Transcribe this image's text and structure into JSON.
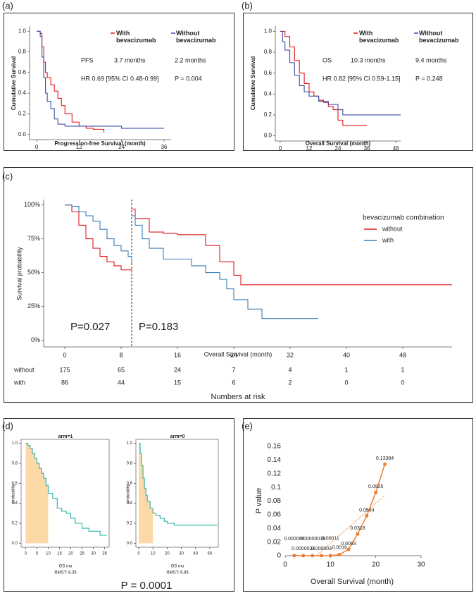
{
  "chart_data": [
    {
      "label": "(a)",
      "type": "step",
      "x_label": "Progression-free Survival (month)",
      "y_label": "Cumulative Survival",
      "xlim": [
        -2,
        38
      ],
      "xticks": [
        0,
        12,
        24,
        36
      ],
      "ylim": [
        -0.05,
        1.05
      ],
      "yticks": [
        {
          "value": 0,
          "label": "0.0"
        },
        0.2,
        0.4,
        0.6,
        0.8,
        {
          "value": 1,
          "label": "1.0"
        }
      ],
      "series": [
        {
          "name": "With bevacizumab",
          "color": "#e8141b",
          "x": [
            0,
            1,
            1.5,
            2,
            2.5,
            3,
            4,
            5,
            6,
            7,
            8,
            10,
            12,
            14,
            16,
            19
          ],
          "values": [
            1,
            0.98,
            0.85,
            0.7,
            0.6,
            0.55,
            0.48,
            0.42,
            0.35,
            0.28,
            0.2,
            0.12,
            0.08,
            0.06,
            0.05,
            0.02
          ]
        },
        {
          "name": "Without bevacizumab",
          "color": "#3a4ca8",
          "x": [
            0,
            1,
            1.5,
            2,
            2.5,
            3,
            4,
            5,
            6,
            8,
            24,
            36
          ],
          "values": [
            1,
            0.95,
            0.75,
            0.55,
            0.4,
            0.32,
            0.25,
            0.15,
            0.1,
            0.08,
            0.06,
            0.06
          ]
        }
      ],
      "annotations": [
        "PFS",
        "3.7 months",
        "2.2 months",
        "HR 0.69 [95% CI 0.48-0.99]",
        "P = 0.004"
      ]
    },
    {
      "label": "(b)",
      "type": "step",
      "x_label": "Overall Survival (month)",
      "y_label": "Cumulative Survival",
      "xlim": [
        -2,
        50
      ],
      "xticks": [
        0,
        12,
        24,
        36,
        48
      ],
      "ylim": [
        -0.05,
        1.05
      ],
      "yticks": [
        {
          "value": 0,
          "label": "0.0"
        },
        0.2,
        0.4,
        0.6,
        0.8,
        {
          "value": 1,
          "label": "1.0"
        }
      ],
      "series": [
        {
          "name": "With bevacizumab",
          "color": "#e8141b",
          "x": [
            0,
            2,
            4,
            6,
            8,
            10,
            12,
            14,
            16,
            18,
            20,
            22,
            24,
            26,
            36
          ],
          "values": [
            1,
            0.95,
            0.85,
            0.72,
            0.6,
            0.5,
            0.42,
            0.38,
            0.34,
            0.32,
            0.28,
            0.25,
            0.15,
            0.1,
            0.1
          ]
        },
        {
          "name": "Without bevacizumab",
          "color": "#3a4ca8",
          "x": [
            0,
            1,
            2,
            4,
            6,
            8,
            10,
            12,
            16,
            20,
            24,
            26,
            50
          ],
          "values": [
            1,
            0.9,
            0.82,
            0.7,
            0.58,
            0.48,
            0.42,
            0.38,
            0.33,
            0.3,
            0.25,
            0.2,
            0.2
          ]
        }
      ],
      "annotations": [
        "OS",
        "10.3 months",
        "9.4 months",
        "HR 0.82 [95% CI 0.59-1.15]",
        "P = 0.248"
      ]
    },
    {
      "label": "(c)",
      "type": "step",
      "x_label": "Overall Survival (month)",
      "y_label": "Survival probability",
      "xlim": [
        -3,
        55
      ],
      "xticks": [
        0,
        8,
        16,
        24,
        32,
        40,
        48
      ],
      "ylim": [
        -5,
        104
      ],
      "yticks": [
        {
          "value": 0,
          "label": "0%"
        },
        {
          "value": 25,
          "label": "25%"
        },
        {
          "value": 50,
          "label": "50%"
        },
        {
          "value": 75,
          "label": "75%"
        },
        {
          "value": 100,
          "label": "100%"
        }
      ],
      "legend_title": "bevacizumab combination",
      "landmark": 9.5,
      "series": [
        {
          "name": "without",
          "color": "#e41a1c",
          "x": [
            0,
            1,
            2,
            3,
            4,
            5,
            6,
            7,
            8,
            9.5,
            null,
            9.5,
            10,
            12,
            14,
            16,
            20,
            22,
            24,
            25,
            55
          ],
          "values": [
            100,
            95,
            85,
            75,
            68,
            62,
            58,
            55,
            52,
            50,
            null,
            97,
            90,
            80,
            79,
            78,
            70,
            58,
            48,
            41,
            41
          ]
        },
        {
          "name": "with",
          "color": "#377eb8",
          "x": [
            0,
            1,
            2,
            3,
            4,
            5,
            6,
            7,
            8,
            9,
            9.5,
            null,
            9.5,
            10,
            11,
            12,
            14,
            16,
            18,
            20,
            22,
            23,
            24,
            26,
            28,
            36
          ],
          "values": [
            100,
            99,
            95,
            92,
            88,
            82,
            75,
            70,
            66,
            62,
            57,
            null,
            92,
            85,
            75,
            68,
            60,
            60,
            55,
            50,
            45,
            38,
            30,
            23,
            16,
            16
          ]
        }
      ],
      "annotations": [
        "P=0.027",
        "P=0.183"
      ],
      "risk_table": {
        "title": "Numbers at risk",
        "rows": [
          {
            "name": "without",
            "values": [
              175,
              65,
              24,
              7,
              4,
              1,
              1
            ]
          },
          {
            "name": "with",
            "values": [
              86,
              44,
              15,
              6,
              2,
              0,
              0
            ]
          }
        ]
      }
    },
    {
      "label": "(d)",
      "type": "step",
      "title": "arm=1",
      "y_label": "probability",
      "xlim": [
        -2,
        37
      ],
      "xticks": [
        0,
        5,
        10,
        15,
        20,
        25,
        30,
        35
      ],
      "ylim": [
        -0.04,
        1.04
      ],
      "yticks": [
        {
          "value": 0,
          "label": "0.0"
        },
        0.2,
        0.4,
        0.6,
        0.8,
        {
          "value": 1,
          "label": "1.0"
        }
      ],
      "shade_until": 10,
      "shade_color": "#fcd9a6",
      "series": [
        {
          "color": "#2ab0a6",
          "x": [
            0,
            1,
            2,
            3,
            4,
            5,
            6,
            7,
            8,
            9,
            10,
            12,
            14,
            16,
            18,
            20,
            22,
            25,
            28,
            30,
            33,
            36
          ],
          "values": [
            1,
            0.98,
            0.95,
            0.9,
            0.85,
            0.8,
            0.75,
            0.7,
            0.65,
            0.58,
            0.5,
            0.45,
            0.35,
            0.32,
            0.3,
            0.25,
            0.2,
            0.15,
            0.12,
            0.12,
            0.08,
            0.08
          ]
        }
      ],
      "annotations": [
        "OS mo",
        "RMST: 8.35",
        "P = 0.0001"
      ]
    },
    {
      "type": "step",
      "title": "arm=0",
      "y_label": "probability",
      "xlim": [
        -2,
        56
      ],
      "xticks": [
        0,
        10,
        20,
        30,
        40,
        50
      ],
      "ylim": [
        -0.04,
        1.04
      ],
      "yticks": [
        {
          "value": 0,
          "label": "0.0"
        },
        0.2,
        0.4,
        0.6,
        0.8,
        {
          "value": 1,
          "label": "1.0"
        }
      ],
      "shade_until": 10,
      "shade_color": "#fcd9a6",
      "series": [
        {
          "color": "#2ab0a6",
          "x": [
            0,
            1,
            2,
            3,
            4,
            5,
            6,
            8,
            10,
            12,
            15,
            18,
            20,
            25,
            55
          ],
          "values": [
            1,
            0.9,
            0.78,
            0.65,
            0.55,
            0.48,
            0.42,
            0.35,
            0.3,
            0.28,
            0.25,
            0.22,
            0.2,
            0.18,
            0.18
          ]
        }
      ],
      "annotations": [
        "OS mo",
        "RMST: 6.85"
      ]
    },
    {
      "label": "(e)",
      "type": "line",
      "x_label": "Overall Survival (month)",
      "y_label": "P value",
      "xlim": [
        0,
        30
      ],
      "xticks": [
        0,
        10,
        20,
        30
      ],
      "ylim": [
        0,
        0.16
      ],
      "yticks": [
        0,
        0.02,
        0.04,
        0.06,
        0.08,
        0.1,
        0.12,
        0.14,
        0.16
      ],
      "trendline": true,
      "series": [
        {
          "color": "#ed7d31",
          "x": [
            2,
            4,
            6,
            8,
            10,
            12,
            14,
            16,
            18,
            20,
            22
          ],
          "values": [
            7.6e-05,
            2.4e-06,
            1.9e-07,
            3e-06,
            0.00011,
            0.0016,
            0.0093,
            0.0318,
            0.0584,
            0.0925,
            0.13384
          ],
          "value_labels": [
            "0.000076",
            "0.0000024",
            "0.00000019",
            "0.000003",
            "0.00011",
            "0.0016",
            "0.0093",
            "0.0318",
            "0.0584",
            "0.0925",
            "0.13384"
          ]
        }
      ]
    }
  ]
}
